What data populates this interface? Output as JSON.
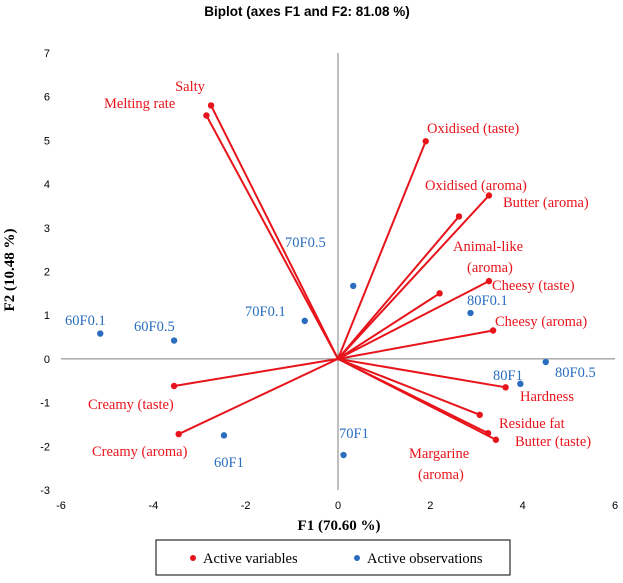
{
  "chart_data": {
    "type": "scatter",
    "title": "Biplot (axes F1 and F2: 81.08 %)",
    "xlabel": "F1 (70.60 %)",
    "ylabel": "F2 (10.48 %)",
    "xlim": [
      -6,
      6
    ],
    "ylim": [
      -3,
      7
    ],
    "xticks": [
      "-6",
      "-4",
      "-2",
      "0",
      "2",
      "4",
      "6"
    ],
    "yticks": [
      "-3",
      "-2",
      "-1",
      "0",
      "1",
      "2",
      "3",
      "4",
      "5",
      "6",
      "7"
    ],
    "colors": {
      "variables": "#e8141b",
      "observations": "#2a6dbf",
      "axis": "#7f7f7f"
    },
    "variables": [
      {
        "name": "Salty",
        "x": -2.75,
        "y": 5.8
      },
      {
        "name": "Melting rate",
        "x": -2.85,
        "y": 5.57
      },
      {
        "name": "Oxidised (taste)",
        "x": 1.9,
        "y": 4.98
      },
      {
        "name": "Oxidised (aroma)",
        "x": 2.62,
        "y": 3.26
      },
      {
        "name": "Butter (aroma)",
        "x": 3.27,
        "y": 3.74
      },
      {
        "name": "Animal-like (aroma)",
        "x": 2.2,
        "y": 1.5
      },
      {
        "name": "Cheesy (taste)",
        "x": 3.27,
        "y": 1.78
      },
      {
        "name": "Cheesy (aroma)",
        "x": 3.36,
        "y": 0.65
      },
      {
        "name": "Hardness",
        "x": 3.63,
        "y": -0.65
      },
      {
        "name": "Residue fat",
        "x": 3.07,
        "y": -1.28
      },
      {
        "name": "Butter (taste)",
        "x": 3.42,
        "y": -1.85
      },
      {
        "name": "Margarine (aroma)",
        "x": 3.25,
        "y": -1.7
      },
      {
        "name": "Creamy (taste)",
        "x": -3.55,
        "y": -0.62
      },
      {
        "name": "Creamy (aroma)",
        "x": -3.45,
        "y": -1.72
      }
    ],
    "observations": [
      {
        "name": "60F0.1",
        "x": -5.15,
        "y": 0.58
      },
      {
        "name": "60F0.5",
        "x": -3.55,
        "y": 0.42
      },
      {
        "name": "70F0.1",
        "x": -0.72,
        "y": 0.87
      },
      {
        "name": "70F0.5",
        "x": 0.33,
        "y": 1.67
      },
      {
        "name": "80F0.1",
        "x": 2.87,
        "y": 1.05
      },
      {
        "name": "80F0.5",
        "x": 4.5,
        "y": -0.07
      },
      {
        "name": "80F1",
        "x": 3.95,
        "y": -0.57
      },
      {
        "name": "70F1",
        "x": 0.12,
        "y": -2.2
      },
      {
        "name": "60F1",
        "x": -2.47,
        "y": -1.75
      }
    ],
    "legend": {
      "entries": [
        "Active variables",
        "Active observations"
      ],
      "position": "bottom"
    }
  }
}
